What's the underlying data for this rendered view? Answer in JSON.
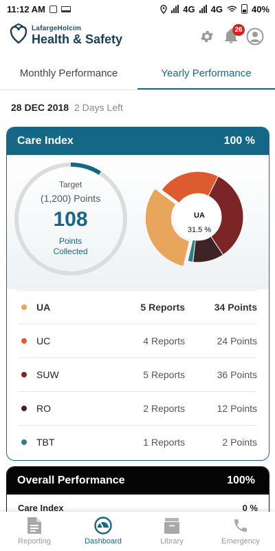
{
  "status_bar": {
    "time": "11:12 AM",
    "network_1": "4G",
    "network_2": "4G",
    "battery": "40%"
  },
  "header": {
    "brand_small": "LafargeHolcim",
    "brand_main": "Health & Safety",
    "notification_count": "26"
  },
  "tabs": [
    {
      "label": "Monthly Performance",
      "active": false
    },
    {
      "label": "Yearly Performance",
      "active": true
    }
  ],
  "period": {
    "date": "28 DEC 2018",
    "remaining": "2 Days Left"
  },
  "care_index": {
    "title": "Care Index",
    "percent": "100 %",
    "gauge": {
      "target_label": "Target",
      "target_points": "(1,200) Points",
      "value": "108",
      "points_label": "Points",
      "collected_label": "Collected",
      "progress": 0.09
    },
    "donut": {
      "center_name": "UA",
      "center_value": "31.5 %",
      "segments": [
        {
          "name": "UA",
          "points": 34,
          "color": "#e8a55c"
        },
        {
          "name": "UC",
          "points": 24,
          "color": "#de5a2f"
        },
        {
          "name": "SUW",
          "points": 36,
          "color": "#7b2527"
        },
        {
          "name": "RO",
          "points": 12,
          "color": "#3e2426"
        },
        {
          "name": "TBT",
          "points": 2,
          "color": "#2f7f82"
        }
      ]
    },
    "rows": [
      {
        "name": "UA",
        "reports": "5 Reports",
        "points": "34 Points",
        "color": "#e8a55c"
      },
      {
        "name": "UC",
        "reports": "4 Reports",
        "points": "24 Points",
        "color": "#de5a2f"
      },
      {
        "name": "SUW",
        "reports": "5 Reports",
        "points": "36 Points",
        "color": "#7b2527"
      },
      {
        "name": "RO",
        "reports": "2 Reports",
        "points": "12 Points",
        "color": "#3e2426"
      },
      {
        "name": "TBT",
        "reports": "1 Reports",
        "points": "2 Points",
        "color": "#2f7f82"
      }
    ]
  },
  "overall": {
    "title": "Overall Performance",
    "percent": "100%",
    "row_label": "Care Index",
    "row_value": "0 %"
  },
  "bottom_nav": [
    {
      "label": "Reporting",
      "icon": "document-icon",
      "active": false
    },
    {
      "label": "Dashboard",
      "icon": "speedometer-icon",
      "active": true
    },
    {
      "label": "Library",
      "icon": "archive-box-icon",
      "active": false
    },
    {
      "label": "Emergency",
      "icon": "phone-icon",
      "active": false
    }
  ],
  "colors": {
    "primary": "#146785",
    "badge": "#d32222"
  }
}
